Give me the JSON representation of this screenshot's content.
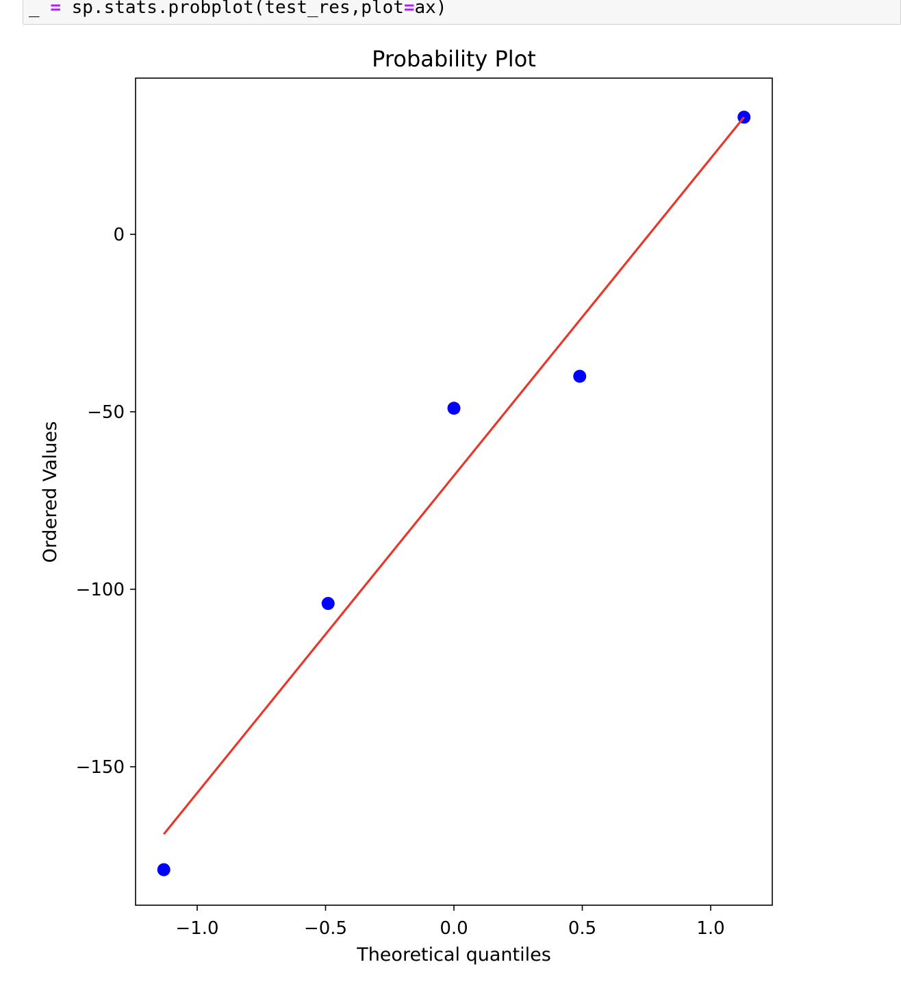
{
  "code_cell": {
    "tokens": [
      {
        "text": "_",
        "role": "name"
      },
      {
        "text": " ",
        "role": "space"
      },
      {
        "text": "=",
        "role": "op"
      },
      {
        "text": " sp.stats.probplot(test_res,plot",
        "role": "name"
      },
      {
        "text": "=",
        "role": "op"
      },
      {
        "text": "ax)",
        "role": "name"
      }
    ]
  },
  "chart_data": {
    "type": "scatter",
    "title": "Probability Plot",
    "xlabel": "Theoretical quantiles",
    "ylabel": "Ordered Values",
    "xlim": [
      -1.24,
      1.24
    ],
    "ylim": [
      -189,
      44
    ],
    "xticks": [
      {
        "value": -1.0,
        "label": "−1.0"
      },
      {
        "value": -0.5,
        "label": "−0.5"
      },
      {
        "value": 0.0,
        "label": "0.0"
      },
      {
        "value": 0.5,
        "label": "0.5"
      },
      {
        "value": 1.0,
        "label": "1.0"
      }
    ],
    "yticks": [
      {
        "value": 0,
        "label": "0"
      },
      {
        "value": -50,
        "label": "−50"
      },
      {
        "value": -100,
        "label": "−100"
      },
      {
        "value": -150,
        "label": "−150"
      }
    ],
    "grid": false,
    "points": {
      "x": [
        -1.13,
        -0.49,
        0.0,
        0.49,
        1.13
      ],
      "y": [
        -179,
        -104,
        -49,
        -40,
        33
      ],
      "color": "#0000ff"
    },
    "fit_line": {
      "x": [
        -1.13,
        1.13
      ],
      "y": [
        -169,
        33
      ],
      "color": "#e8372b"
    }
  }
}
